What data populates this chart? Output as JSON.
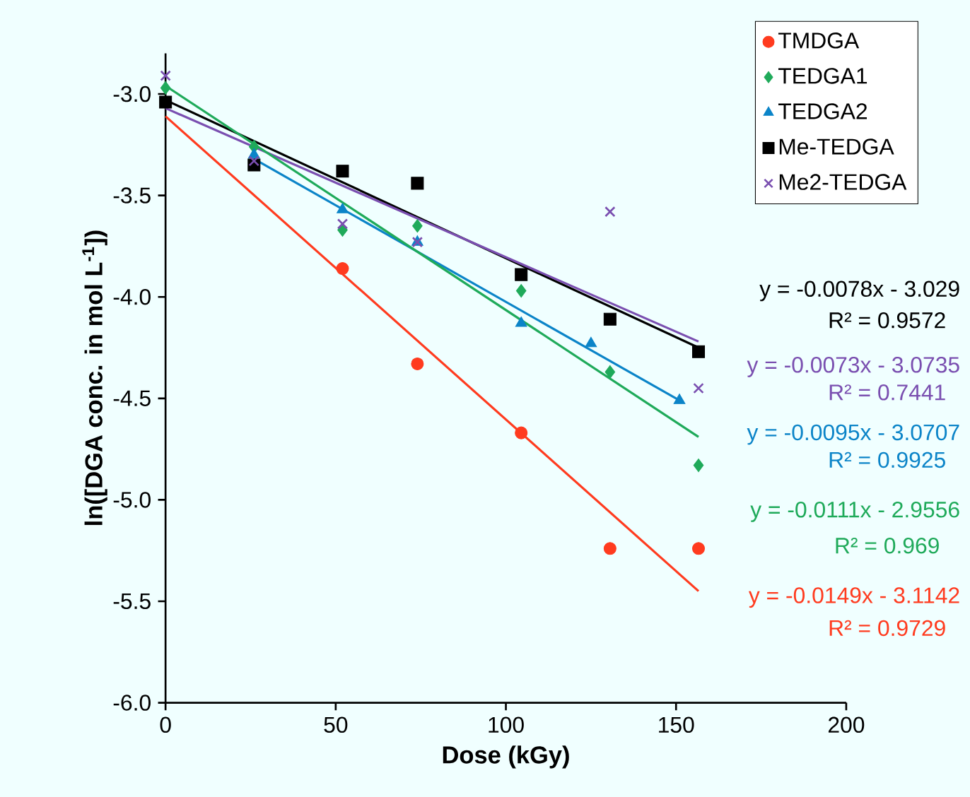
{
  "chart_data": {
    "type": "scatter",
    "xlabel": "Dose (kGy)",
    "ylabel": "ln([DGA conc. in mol L$^{-1}$])",
    "xlim": [
      0,
      200
    ],
    "ylim": [
      -6,
      -2.8
    ],
    "xticks": [
      0,
      50,
      100,
      150,
      200
    ],
    "yticks": [
      {
        "value": -3,
        "label": "-3.0"
      },
      {
        "value": -3.5,
        "label": "-3.5"
      },
      {
        "value": -4,
        "label": "-4.0"
      },
      {
        "value": -4.5,
        "label": "-4.5"
      },
      {
        "value": -5,
        "label": "-5.0"
      },
      {
        "value": -5.5,
        "label": "-5.5"
      },
      {
        "value": -6,
        "label": "-6.0"
      }
    ],
    "legend": "top right",
    "grid": false,
    "series": [
      {
        "name": "TMDGA",
        "color": "#ff3b1f",
        "marker": "circle",
        "x": [
          52,
          74,
          104.5,
          130.6,
          156.6
        ],
        "values": [
          -3.86,
          -4.33,
          -4.67,
          -5.24,
          -5.24
        ]
      },
      {
        "name": "TEDGA1",
        "color": "#1faa5a",
        "marker": "diamond",
        "x": [
          0,
          26,
          52,
          74,
          104.5,
          130.6,
          156.6
        ],
        "values": [
          -2.97,
          -3.26,
          -3.67,
          -3.65,
          -3.97,
          -4.37,
          -4.83
        ]
      },
      {
        "name": "TEDGA2",
        "color": "#0b84c8",
        "marker": "triangle",
        "x": [
          26,
          52,
          74,
          104.5,
          125,
          151
        ],
        "values": [
          -3.3,
          -3.57,
          -3.73,
          -4.13,
          -4.23,
          -4.51
        ]
      },
      {
        "name": "Me-TEDGA",
        "color": "#000000",
        "marker": "square",
        "x": [
          0,
          26,
          52,
          74,
          104.5,
          130.6,
          156.6
        ],
        "values": [
          -3.04,
          -3.35,
          -3.38,
          -3.44,
          -3.89,
          -4.11,
          -4.27
        ]
      },
      {
        "name": "Me2-TEDGA",
        "color": "#7a4fb0",
        "marker": "cross",
        "x": [
          0,
          26,
          52,
          74,
          130.6,
          156.6
        ],
        "values": [
          -2.91,
          -3.33,
          -3.64,
          -3.73,
          -3.58,
          -4.45
        ]
      },
      {
        "type": "line",
        "color": "#000000",
        "marker": "none",
        "x": [
          0,
          156.6
        ],
        "values": [
          -3.03,
          -4.25
        ]
      },
      {
        "type": "line",
        "color": "#7a4fb0",
        "marker": "none",
        "x": [
          0,
          156.6
        ],
        "values": [
          -3.07,
          -4.22
        ]
      },
      {
        "type": "line",
        "color": "#0b84c8",
        "marker": "none",
        "x": [
          26,
          151
        ],
        "values": [
          -3.32,
          -4.51
        ]
      },
      {
        "type": "line",
        "color": "#1faa5a",
        "marker": "none",
        "x": [
          0,
          156.6
        ],
        "values": [
          -2.96,
          -4.69
        ]
      },
      {
        "type": "line",
        "color": "#ff3b1f",
        "marker": "none",
        "x": [
          0,
          156.6
        ],
        "values": [
          -3.11,
          -5.45
        ]
      }
    ],
    "annotations": [
      "y = -0.0078x - 3.029",
      "R² = 0.9572",
      "y = -0.0073x - 3.0735",
      "R² = 0.7441",
      "y = -0.0095x - 3.0707",
      "R² = 0.9925",
      "y = -0.0111x - 2.9556",
      "R² = 0.969",
      "y = -0.0149x - 3.1142",
      "R² = 0.9729"
    ]
  }
}
